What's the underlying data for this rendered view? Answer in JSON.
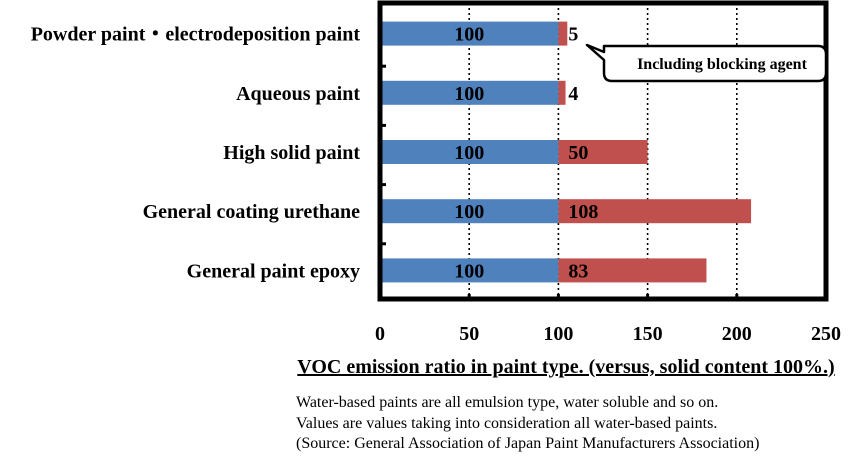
{
  "chart_data": {
    "type": "bar",
    "orientation": "horizontal",
    "stacked": true,
    "categories": [
      "Powder paint・electrodeposition paint",
      "Aqueous paint",
      "High solid paint",
      "General coating urethane",
      "General paint epoxy"
    ],
    "series": [
      {
        "values": [
          100,
          100,
          100,
          100,
          100
        ],
        "color": "#4f81bd"
      },
      {
        "values": [
          5,
          4,
          50,
          108,
          83
        ],
        "color": "#c0504d"
      }
    ],
    "xlabel": "VOC emission ratio in paint type. (versus, solid content 100%.)",
    "xlim": [
      0,
      250
    ],
    "xticks": [
      0,
      50,
      100,
      150,
      200,
      250
    ],
    "grid": "vertical dotted",
    "annotation": {
      "text": "Including blocking agent",
      "target_category_index": 0
    }
  },
  "notes": [
    "Water-based paints are all emulsion type, water soluble and so on.",
    "Values are values taking into consideration all water-based paints.",
    "(Source: General Association of Japan Paint Manufacturers Association)"
  ]
}
